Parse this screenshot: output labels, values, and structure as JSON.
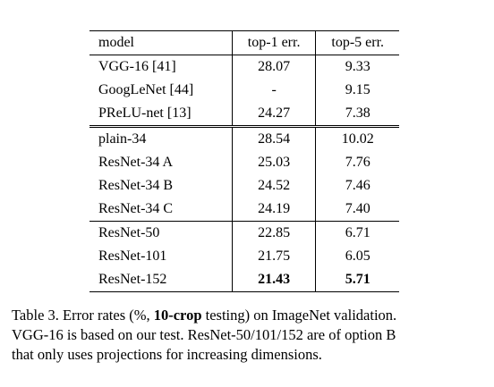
{
  "table": {
    "headers": [
      "model",
      "top-1 err.",
      "top-5 err."
    ],
    "groups": [
      [
        {
          "model": "VGG-16 [41]",
          "top1": "28.07",
          "top5": "9.33"
        },
        {
          "model": "GoogLeNet [44]",
          "top1": "-",
          "top5": "9.15"
        },
        {
          "model": "PReLU-net [13]",
          "top1": "24.27",
          "top5": "7.38"
        }
      ],
      [
        {
          "model": "plain-34",
          "top1": "28.54",
          "top5": "10.02"
        },
        {
          "model": "ResNet-34 A",
          "top1": "25.03",
          "top5": "7.76"
        },
        {
          "model": "ResNet-34 B",
          "top1": "24.52",
          "top5": "7.46"
        },
        {
          "model": "ResNet-34 C",
          "top1": "24.19",
          "top5": "7.40"
        }
      ],
      [
        {
          "model": "ResNet-50",
          "top1": "22.85",
          "top5": "6.71"
        },
        {
          "model": "ResNet-101",
          "top1": "21.75",
          "top5": "6.05"
        },
        {
          "model": "ResNet-152",
          "top1": "21.43",
          "top5": "5.71",
          "bold": true
        }
      ]
    ]
  },
  "caption": {
    "line1_pre": "Table 3. Error rates (%, ",
    "line1_bold": "10-crop",
    "line1_post": " testing) on ImageNet validation.",
    "line2": "VGG-16 is based on our test. ResNet-50/101/152 are of option B",
    "line3": "that only uses projections for increasing dimensions."
  }
}
